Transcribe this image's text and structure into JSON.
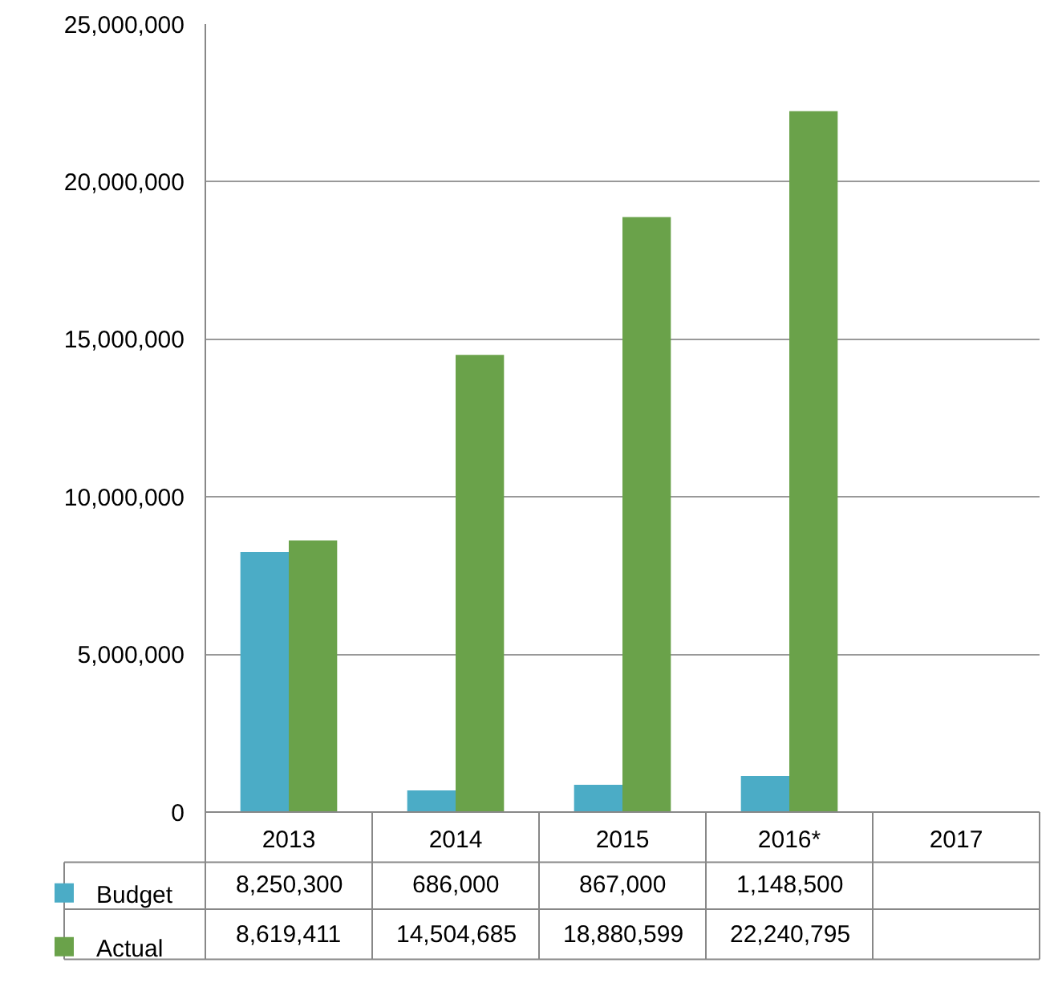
{
  "chart_data": {
    "type": "bar",
    "categories": [
      "2013",
      "2014",
      "2015",
      "2016*",
      "2017"
    ],
    "series": [
      {
        "name": "Budget",
        "color": "#4bacc6",
        "values": [
          8250300,
          686000,
          867000,
          1148500,
          null
        ],
        "value_labels": [
          "8,250,300",
          "686,000",
          "867,000",
          "1,148,500",
          null
        ]
      },
      {
        "name": "Actual",
        "color": "#6aa24a",
        "values": [
          8619411,
          14504685,
          18880599,
          22240795,
          null
        ],
        "value_labels": [
          "8,619,411",
          "14,504,685",
          "18,880,599",
          "22,240,795",
          null
        ]
      }
    ],
    "ylim": [
      0,
      25000000
    ],
    "yticks": [
      0,
      {
        "value": 5000000,
        "label": "5,000,000"
      },
      {
        "value": 10000000,
        "label": "10,000,000"
      },
      {
        "value": 15000000,
        "label": "15,000,000"
      },
      {
        "value": 20000000,
        "label": "20,000,000"
      },
      {
        "value": 25000000,
        "label": "25,000,000"
      }
    ],
    "grid": "y",
    "legend": "bottom"
  }
}
